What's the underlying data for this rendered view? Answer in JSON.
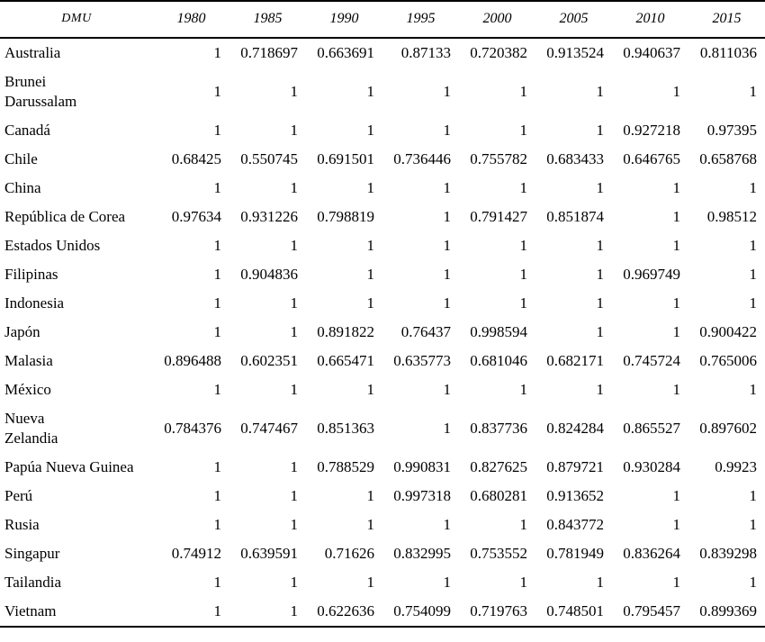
{
  "table": {
    "header": {
      "dmu": "DMU",
      "years": [
        "1980",
        "1985",
        "1990",
        "1995",
        "2000",
        "2005",
        "2010",
        "2015"
      ]
    },
    "rows": [
      {
        "label": "Australia",
        "values": [
          "1",
          "0.718697",
          "0.663691",
          "0.87133",
          "0.720382",
          "0.913524",
          "0.940637",
          "0.811036"
        ]
      },
      {
        "label": "Brunei\nDarussalam",
        "values": [
          "1",
          "1",
          "1",
          "1",
          "1",
          "1",
          "1",
          "1"
        ]
      },
      {
        "label": "Canadá",
        "values": [
          "1",
          "1",
          "1",
          "1",
          "1",
          "1",
          "0.927218",
          "0.97395"
        ]
      },
      {
        "label": "Chile",
        "values": [
          "0.68425",
          "0.550745",
          "0.691501",
          "0.736446",
          "0.755782",
          "0.683433",
          "0.646765",
          "0.658768"
        ]
      },
      {
        "label": "China",
        "values": [
          "1",
          "1",
          "1",
          "1",
          "1",
          "1",
          "1",
          "1"
        ]
      },
      {
        "label": "República de Corea",
        "values": [
          "0.97634",
          "0.931226",
          "0.798819",
          "1",
          "0.791427",
          "0.851874",
          "1",
          "0.98512"
        ]
      },
      {
        "label": "Estados Unidos",
        "values": [
          "1",
          "1",
          "1",
          "1",
          "1",
          "1",
          "1",
          "1"
        ]
      },
      {
        "label": "Filipinas",
        "values": [
          "1",
          "0.904836",
          "1",
          "1",
          "1",
          "1",
          "0.969749",
          "1"
        ]
      },
      {
        "label": "Indonesia",
        "values": [
          "1",
          "1",
          "1",
          "1",
          "1",
          "1",
          "1",
          "1"
        ]
      },
      {
        "label": "Japón",
        "values": [
          "1",
          "1",
          "0.891822",
          "0.76437",
          "0.998594",
          "1",
          "1",
          "0.900422"
        ]
      },
      {
        "label": "Malasia",
        "values": [
          "0.896488",
          "0.602351",
          "0.665471",
          "0.635773",
          "0.681046",
          "0.682171",
          "0.745724",
          "0.765006"
        ]
      },
      {
        "label": "México",
        "values": [
          "1",
          "1",
          "1",
          "1",
          "1",
          "1",
          "1",
          "1"
        ]
      },
      {
        "label": "Nueva\nZelandia",
        "values": [
          "0.784376",
          "0.747467",
          "0.851363",
          "1",
          "0.837736",
          "0.824284",
          "0.865527",
          "0.897602"
        ]
      },
      {
        "label": "Papúa Nueva Guinea",
        "values": [
          "1",
          "1",
          "0.788529",
          "0.990831",
          "0.827625",
          "0.879721",
          "0.930284",
          "0.9923"
        ]
      },
      {
        "label": "Perú",
        "values": [
          "1",
          "1",
          "1",
          "0.997318",
          "0.680281",
          "0.913652",
          "1",
          "1"
        ]
      },
      {
        "label": "Rusia",
        "values": [
          "1",
          "1",
          "1",
          "1",
          "1",
          "0.843772",
          "1",
          "1"
        ]
      },
      {
        "label": "Singapur",
        "values": [
          "0.74912",
          "0.639591",
          "0.71626",
          "0.832995",
          "0.753552",
          "0.781949",
          "0.836264",
          "0.839298"
        ]
      },
      {
        "label": "Tailandia",
        "values": [
          "1",
          "1",
          "1",
          "1",
          "1",
          "1",
          "1",
          "1"
        ]
      },
      {
        "label": "Vietnam",
        "values": [
          "1",
          "1",
          "0.622636",
          "0.754099",
          "0.719763",
          "0.748501",
          "0.795457",
          "0.899369"
        ]
      }
    ],
    "colors": {
      "text": "#000000",
      "background": "#ffffff",
      "rule": "#000000"
    }
  }
}
